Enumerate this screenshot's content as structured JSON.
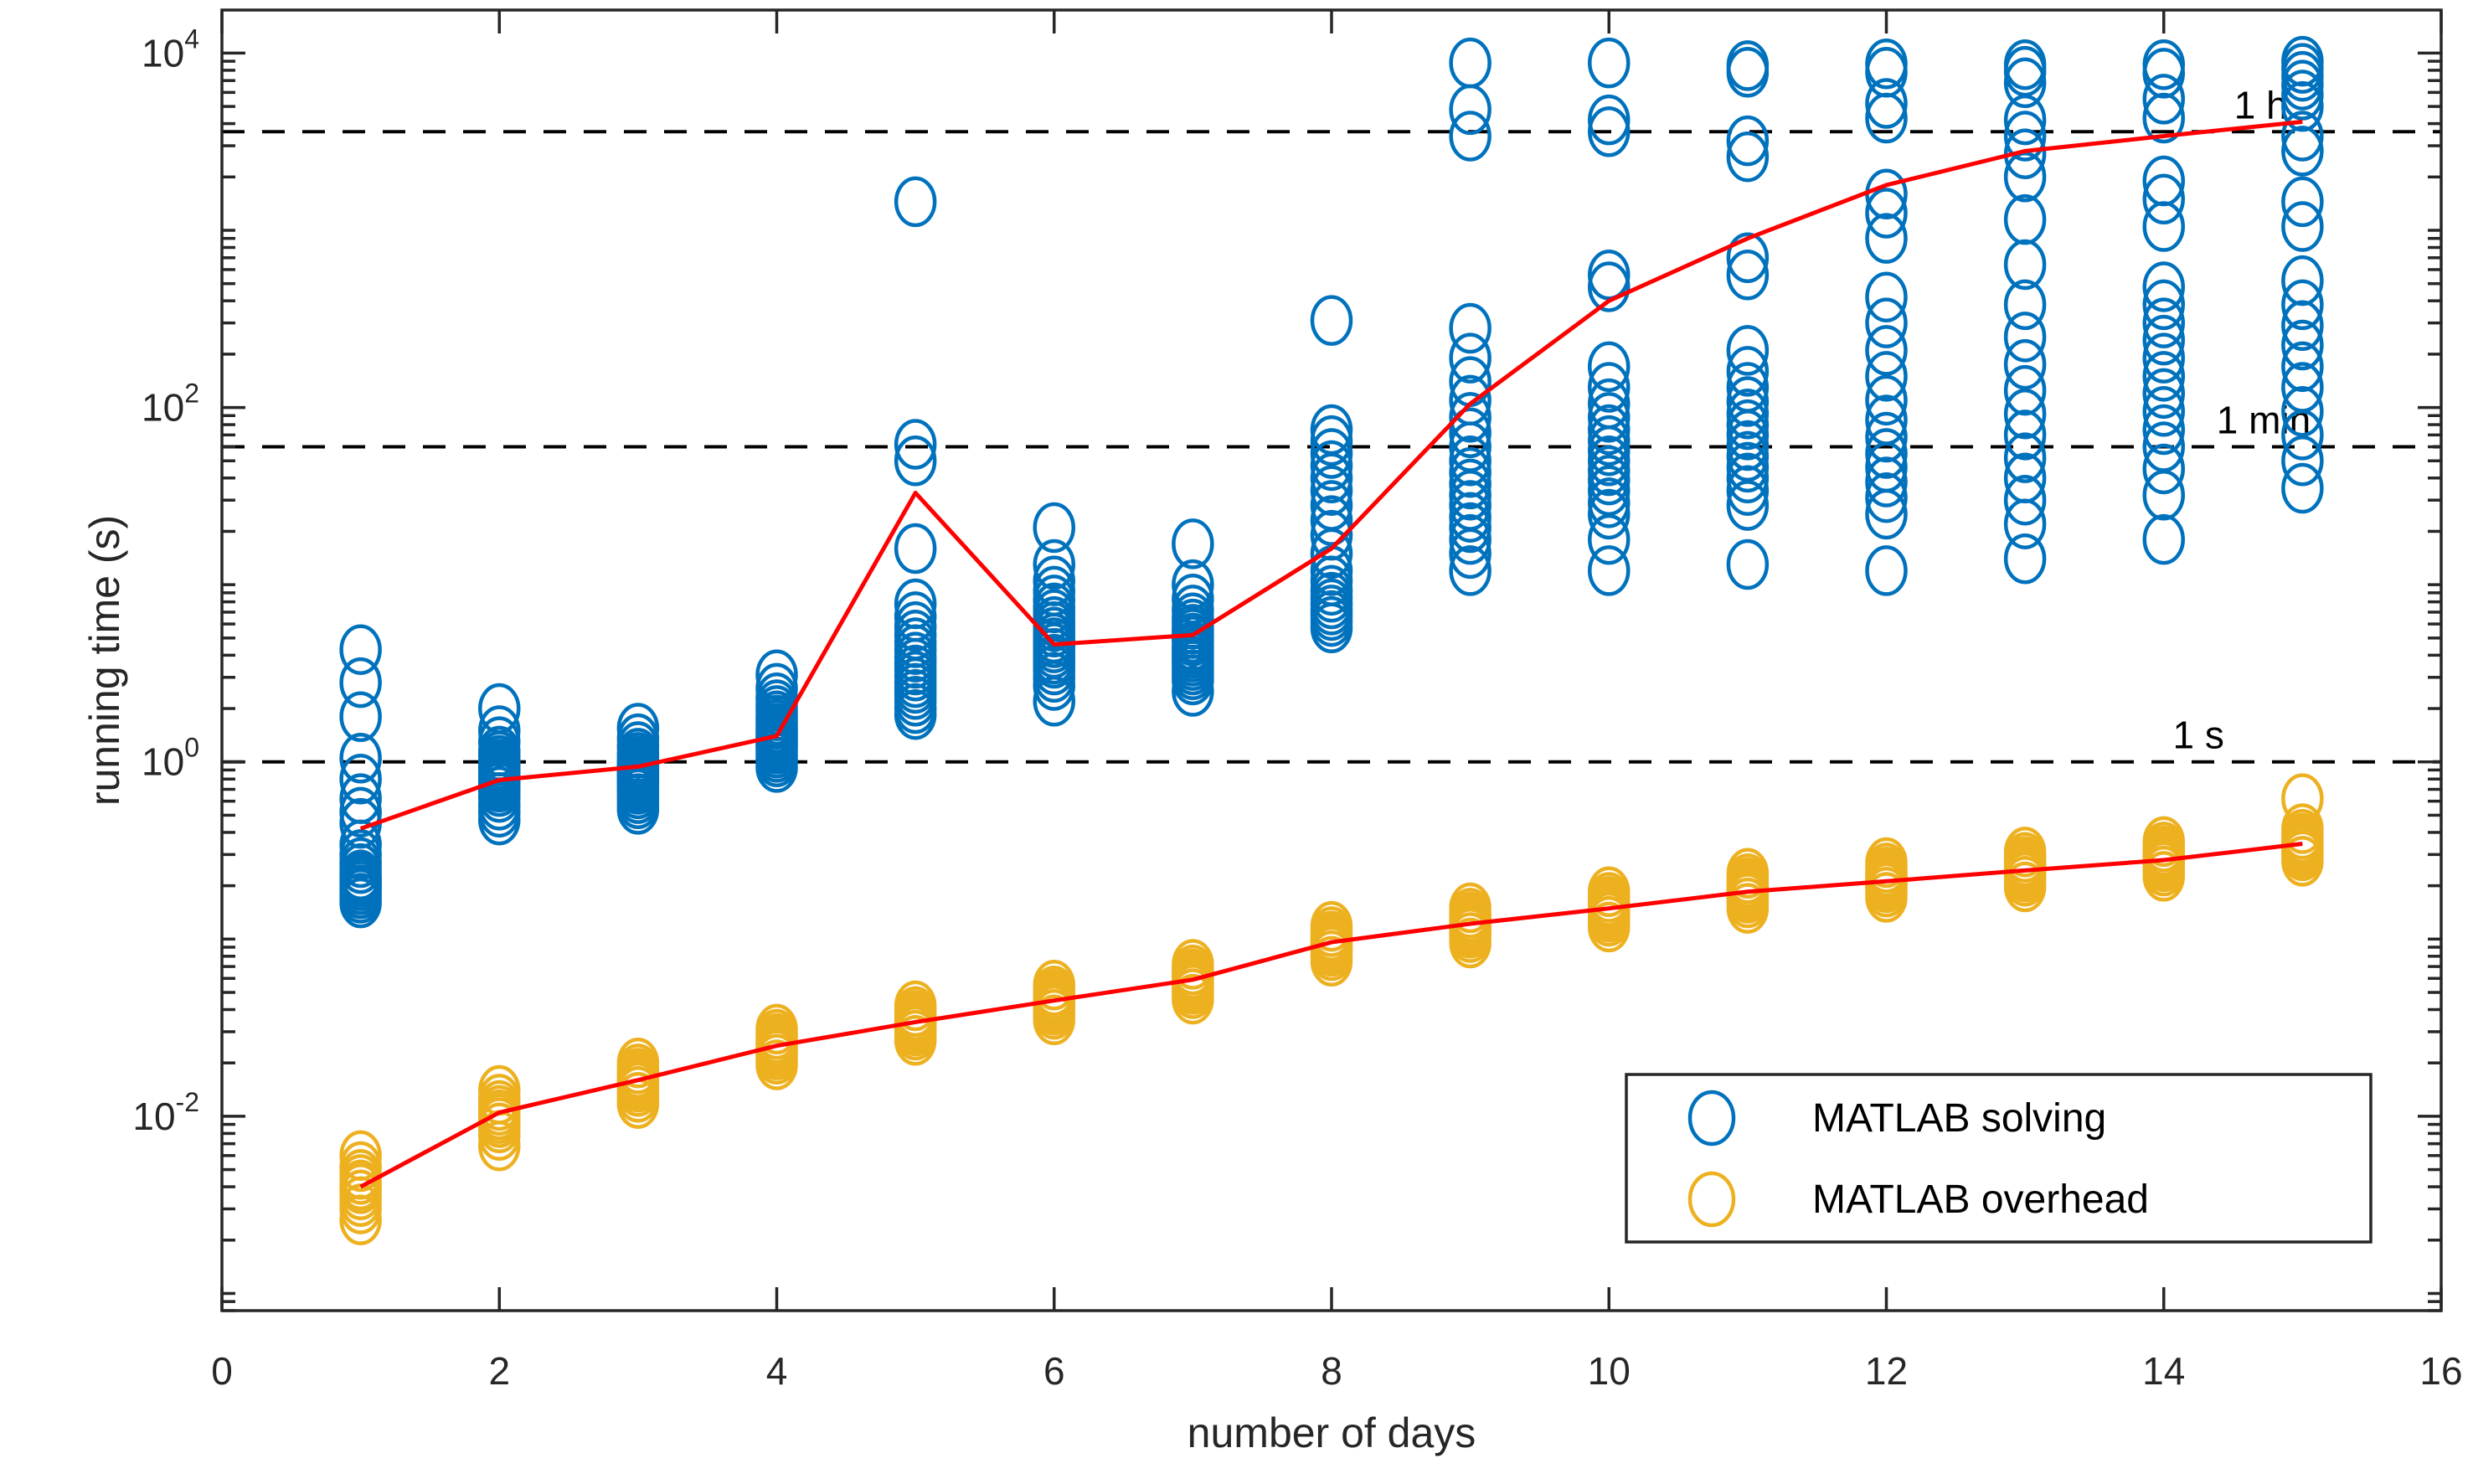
{
  "axes": {
    "xlabel": "number of days",
    "ylabel": "running time (s)",
    "xlim": [
      0,
      16
    ],
    "ylim_log": [
      -3.097,
      4.243
    ],
    "x_ticks": [
      {
        "value": 0,
        "label": "0"
      },
      {
        "value": 2,
        "label": "2"
      },
      {
        "value": 4,
        "label": "4"
      },
      {
        "value": 6,
        "label": "6"
      },
      {
        "value": 8,
        "label": "8"
      },
      {
        "value": 10,
        "label": "10"
      },
      {
        "value": 12,
        "label": "12"
      },
      {
        "value": 14,
        "label": "14"
      },
      {
        "value": 16,
        "label": "16"
      }
    ],
    "y_ticks": [
      {
        "exp": 4,
        "base": "10",
        "sup": "4"
      },
      {
        "exp": 2,
        "base": "10",
        "sup": "2"
      },
      {
        "exp": 0,
        "base": "10",
        "sup": "0"
      },
      {
        "exp": -2,
        "base": "10",
        "sup": "-2"
      }
    ],
    "grid": false,
    "box": true
  },
  "reference_lines": [
    {
      "label": "1 h",
      "seconds": 3600,
      "label_day": 14.7
    },
    {
      "label": "1 min",
      "seconds": 60,
      "label_day": 14.72
    },
    {
      "label": "1 s",
      "seconds": 1,
      "label_day": 14.25
    }
  ],
  "legend": {
    "position": "southeast",
    "items": [
      {
        "label": "MATLAB solving",
        "color": "#0072BD"
      },
      {
        "label": "MATLAB overhead",
        "color": "#EDB120"
      }
    ]
  },
  "colors": {
    "solving": "#0072BD",
    "overhead": "#EDB120",
    "trend": "#FF0000",
    "axis": "#262626",
    "dashed": "#000000",
    "background": "#FFFFFF"
  },
  "chart_data": {
    "type": "scatter",
    "title": "",
    "xlabel": "number of days",
    "ylabel": "running time (s)",
    "x_range": [
      0,
      16
    ],
    "y_range_seconds": [
      0.0008,
      17500
    ],
    "y_scale": "log",
    "legend_position": "lower right",
    "x_days": [
      1,
      2,
      3,
      4,
      5,
      6,
      7,
      8,
      9,
      10,
      11,
      12,
      13,
      14,
      15
    ],
    "series": [
      {
        "name": "MATLAB solving",
        "color": "#0072BD",
        "points_seconds": [
          [
            4.3,
            2.8,
            1.8,
            1.05,
            0.8,
            0.62,
            0.52,
            0.45,
            0.34,
            0.3,
            0.27,
            0.25,
            0.23,
            0.22,
            0.21,
            0.2,
            0.19,
            0.18,
            0.17,
            0.16
          ],
          [
            2.0,
            1.5,
            1.3,
            1.15,
            1.08,
            1.02,
            0.97,
            0.93,
            0.89,
            0.86,
            0.83,
            0.8,
            0.78,
            0.75,
            0.72,
            0.68,
            0.63,
            0.57,
            0.52,
            0.47
          ],
          [
            1.55,
            1.35,
            1.22,
            1.12,
            1.06,
            1.01,
            0.97,
            0.94,
            0.91,
            0.88,
            0.85,
            0.82,
            0.79,
            0.76,
            0.73,
            0.7,
            0.66,
            0.62,
            0.58,
            0.54
          ],
          [
            3.1,
            2.6,
            2.3,
            2.1,
            1.95,
            1.82,
            1.72,
            1.63,
            1.55,
            1.49,
            1.43,
            1.38,
            1.33,
            1.28,
            1.23,
            1.18,
            1.12,
            1.06,
            1.0,
            0.93
          ],
          [
            1450,
            62,
            50,
            16,
            7.8,
            6.6,
            5.8,
            5.2,
            4.7,
            4.3,
            3.9,
            3.6,
            3.3,
            3.05,
            2.8,
            2.6,
            2.4,
            2.2,
            2.0,
            1.85
          ],
          [
            21,
            13,
            10.5,
            9.2,
            8.2,
            7.4,
            6.8,
            6.2,
            5.8,
            5.4,
            5.0,
            4.7,
            4.4,
            4.1,
            3.8,
            3.6,
            3.3,
            3.0,
            2.7,
            2.2
          ],
          [
            17,
            10,
            8.3,
            7.2,
            6.5,
            6.0,
            5.6,
            5.3,
            5.0,
            4.8,
            4.5,
            4.3,
            4.1,
            3.9,
            3.7,
            3.5,
            3.3,
            3.1,
            2.9,
            2.5
          ],
          [
            310,
            75,
            65,
            55,
            47,
            40,
            34,
            28,
            23,
            19,
            15,
            12,
            10.5,
            9.3,
            8.5,
            7.8,
            7.2,
            6.7,
            6.2,
            5.7
          ],
          [
            8800,
            4800,
            3400,
            280,
            190,
            140,
            110,
            88,
            72,
            60,
            50,
            43,
            37,
            32,
            28,
            24,
            21,
            18,
            15,
            12
          ],
          [
            8800,
            4200,
            3600,
            560,
            480,
            170,
            130,
            105,
            88,
            75,
            65,
            57,
            50,
            44,
            39,
            34,
            29,
            25,
            18,
            12
          ],
          [
            8500,
            7800,
            3200,
            2600,
            700,
            560,
            210,
            160,
            130,
            108,
            92,
            80,
            70,
            61,
            53,
            46,
            40,
            34,
            28,
            13
          ],
          [
            8700,
            7800,
            5200,
            4300,
            1600,
            1250,
            900,
            420,
            300,
            210,
            150,
            110,
            85,
            68,
            55,
            46,
            38,
            31,
            25,
            12
          ],
          [
            8600,
            7900,
            6800,
            4200,
            3400,
            2700,
            2000,
            1150,
            640,
            380,
            250,
            175,
            125,
            92,
            70,
            52,
            40,
            30,
            22,
            14
          ],
          [
            8600,
            7700,
            5500,
            4300,
            1900,
            1500,
            1050,
            480,
            380,
            300,
            240,
            190,
            150,
            120,
            95,
            75,
            60,
            45,
            32,
            18
          ],
          [
            9000,
            8200,
            7400,
            6600,
            5800,
            5000,
            3400,
            2800,
            1450,
            1050,
            520,
            380,
            290,
            225,
            170,
            130,
            95,
            70,
            50,
            35
          ]
        ]
      },
      {
        "name": "MATLAB overhead",
        "color": "#EDB120",
        "points_seconds": [
          [
            0.006,
            0.0052,
            0.0047,
            0.0044,
            0.0041,
            0.0039,
            0.0036,
            0.0033,
            0.003,
            0.0026
          ],
          [
            0.014,
            0.0125,
            0.0115,
            0.0108,
            0.0102,
            0.0097,
            0.0092,
            0.0086,
            0.0078,
            0.0068
          ],
          [
            0.02,
            0.0185,
            0.0175,
            0.0167,
            0.016,
            0.0153,
            0.0146,
            0.0138,
            0.0128,
            0.0118
          ],
          [
            0.031,
            0.029,
            0.0275,
            0.0262,
            0.0252,
            0.0243,
            0.0233,
            0.0222,
            0.021,
            0.0195
          ],
          [
            0.042,
            0.039,
            0.037,
            0.0355,
            0.0342,
            0.033,
            0.0317,
            0.0303,
            0.0287,
            0.0268
          ],
          [
            0.055,
            0.051,
            0.0485,
            0.0465,
            0.0448,
            0.0432,
            0.0415,
            0.0397,
            0.0376,
            0.035
          ],
          [
            0.072,
            0.067,
            0.0635,
            0.061,
            0.0587,
            0.0566,
            0.0544,
            0.052,
            0.0492,
            0.0458
          ],
          [
            0.118,
            0.11,
            0.104,
            0.1,
            0.0962,
            0.0927,
            0.0891,
            0.0852,
            0.0806,
            0.075
          ],
          [
            0.15,
            0.14,
            0.133,
            0.127,
            0.122,
            0.118,
            0.113,
            0.108,
            0.102,
            0.095
          ],
          [
            0.185,
            0.172,
            0.163,
            0.156,
            0.15,
            0.145,
            0.139,
            0.133,
            0.126,
            0.117
          ],
          [
            0.235,
            0.219,
            0.208,
            0.199,
            0.192,
            0.185,
            0.177,
            0.17,
            0.16,
            0.149
          ],
          [
            0.27,
            0.252,
            0.239,
            0.229,
            0.22,
            0.212,
            0.204,
            0.195,
            0.184,
            0.172
          ],
          [
            0.31,
            0.289,
            0.274,
            0.263,
            0.253,
            0.244,
            0.234,
            0.224,
            0.212,
            0.197
          ],
          [
            0.355,
            0.331,
            0.314,
            0.301,
            0.29,
            0.279,
            0.268,
            0.256,
            0.242,
            0.226
          ],
          [
            0.62,
            0.42,
            0.39,
            0.37,
            0.355,
            0.34,
            0.325,
            0.31,
            0.295,
            0.275
          ]
        ]
      }
    ],
    "trend_lines": [
      {
        "name": "solving trend",
        "color": "#FF0000",
        "values_seconds": [
          0.42,
          0.79,
          0.94,
          1.4,
          33,
          4.6,
          5.2,
          16,
          105,
          400,
          900,
          1800,
          2800,
          3400,
          4100
        ]
      },
      {
        "name": "overhead trend",
        "color": "#FF0000",
        "values_seconds": [
          0.004,
          0.0105,
          0.016,
          0.025,
          0.034,
          0.045,
          0.059,
          0.096,
          0.122,
          0.149,
          0.185,
          0.212,
          0.244,
          0.279,
          0.345
        ]
      }
    ]
  }
}
